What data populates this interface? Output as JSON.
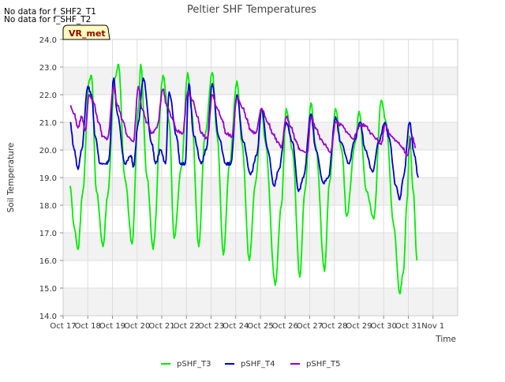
{
  "chart_data": {
    "type": "line",
    "title": "Peltier SHF Temperatures",
    "xlabel": "Time",
    "ylabel": "Soil Temperature",
    "notes": [
      "No data for f_SHF2_T1",
      "No data for f_SHF_T2"
    ],
    "badge": "VR_met",
    "xlim": [
      0,
      16
    ],
    "ylim": [
      14.0,
      24.0
    ],
    "x_ticks": [
      {
        "x": 0,
        "label": "Oct 17"
      },
      {
        "x": 1,
        "label": "Oct 18"
      },
      {
        "x": 2,
        "label": "Oct 19"
      },
      {
        "x": 3,
        "label": "Oct 20"
      },
      {
        "x": 4,
        "label": "Oct 21"
      },
      {
        "x": 5,
        "label": "Oct 22"
      },
      {
        "x": 6,
        "label": "Oct 23"
      },
      {
        "x": 7,
        "label": "Oct 24"
      },
      {
        "x": 8,
        "label": "Oct 25"
      },
      {
        "x": 9,
        "label": "Oct 26"
      },
      {
        "x": 10,
        "label": "Oct 27"
      },
      {
        "x": 11,
        "label": "Oct 28"
      },
      {
        "x": 12,
        "label": "Oct 29"
      },
      {
        "x": 13,
        "label": "Oct 30"
      },
      {
        "x": 14,
        "label": "Oct 31"
      },
      {
        "x": 15,
        "label": "Nov 1"
      }
    ],
    "y_ticks": [
      "14.0",
      "15.0",
      "16.0",
      "17.0",
      "18.0",
      "19.0",
      "20.0",
      "21.0",
      "22.0",
      "23.0",
      "24.0"
    ],
    "grid": true,
    "legend_position": "bottom",
    "series": [
      {
        "name": "pSHF_T3",
        "color": "#00ee00",
        "x": [
          0.28,
          0.45,
          0.6,
          0.8,
          1.05,
          1.15,
          1.35,
          1.62,
          1.8,
          2.1,
          2.25,
          2.5,
          2.8,
          3.05,
          3.15,
          3.4,
          3.65,
          4.05,
          4.3,
          4.5,
          4.8,
          5.05,
          5.2,
          5.5,
          5.75,
          6.05,
          6.25,
          6.5,
          6.75,
          7.05,
          7.25,
          7.55,
          7.8,
          8.05,
          8.2,
          8.6,
          8.85,
          9.05,
          9.3,
          9.6,
          9.8,
          10.05,
          10.25,
          10.6,
          10.8,
          11.05,
          11.3,
          11.5,
          11.85,
          12.0,
          12.3,
          12.6,
          12.9,
          13.1,
          13.4,
          13.65,
          13.8,
          13.95,
          14.05,
          14.2,
          14.35
        ],
        "y": [
          18.7,
          17.2,
          16.4,
          18.5,
          22.5,
          22.7,
          18.5,
          16.5,
          18.3,
          22.6,
          23.1,
          19.0,
          16.6,
          21.5,
          23.1,
          19.0,
          16.4,
          22.7,
          21.0,
          16.8,
          19.4,
          22.8,
          21.5,
          16.5,
          20.5,
          22.8,
          20.5,
          16.2,
          19.5,
          22.5,
          20.3,
          16.0,
          18.8,
          21.5,
          20.3,
          15.1,
          18.0,
          21.5,
          20.0,
          15.4,
          18.5,
          21.7,
          20.1,
          15.6,
          18.8,
          21.5,
          20.0,
          17.6,
          20.3,
          21.4,
          18.5,
          17.5,
          21.8,
          21.0,
          17.3,
          14.8,
          15.6,
          18.2,
          20.5,
          18.5,
          16.0
        ]
      },
      {
        "name": "pSHF_T4",
        "color": "#0000cc",
        "x": [
          0.28,
          0.45,
          0.6,
          0.75,
          1.0,
          1.15,
          1.3,
          1.5,
          1.75,
          1.85,
          2.05,
          2.2,
          2.5,
          2.75,
          2.85,
          3.05,
          3.25,
          3.6,
          3.75,
          3.95,
          4.15,
          4.3,
          4.6,
          4.75,
          4.95,
          5.1,
          5.3,
          5.6,
          5.8,
          6.05,
          6.3,
          6.6,
          6.8,
          7.05,
          7.3,
          7.6,
          7.85,
          8.05,
          8.3,
          8.55,
          8.75,
          9.05,
          9.3,
          9.55,
          9.75,
          10.05,
          10.25,
          10.55,
          10.75,
          11.05,
          11.25,
          11.6,
          11.8,
          12.05,
          12.25,
          12.55,
          12.8,
          13.05,
          13.2,
          13.5,
          13.65,
          13.8,
          14.05,
          14.25,
          14.4
        ],
        "y": [
          21.0,
          20.0,
          19.3,
          20.0,
          22.3,
          22.0,
          20.5,
          19.5,
          19.5,
          19.6,
          22.6,
          21.3,
          19.5,
          19.8,
          19.4,
          21.0,
          22.6,
          20.2,
          19.5,
          20.0,
          19.5,
          22.1,
          20.5,
          19.5,
          19.5,
          22.4,
          20.5,
          19.5,
          20.0,
          22.4,
          20.5,
          19.5,
          19.5,
          22.0,
          20.3,
          19.1,
          19.8,
          21.5,
          20.0,
          18.7,
          19.3,
          21.0,
          20.3,
          18.5,
          19.0,
          21.3,
          20.0,
          18.8,
          19.0,
          21.2,
          20.3,
          19.5,
          20.3,
          21.0,
          20.0,
          19.2,
          20.3,
          21.0,
          20.5,
          18.7,
          18.2,
          19.0,
          21.0,
          19.8,
          19.0
        ]
      },
      {
        "name": "pSHF_T5",
        "color": "#9900cc",
        "x": [
          0.28,
          0.45,
          0.6,
          0.75,
          0.9,
          1.05,
          1.2,
          1.45,
          1.6,
          1.8,
          2.05,
          2.2,
          2.45,
          2.6,
          2.85,
          3.05,
          3.2,
          3.4,
          3.6,
          3.8,
          4.05,
          4.2,
          4.45,
          4.6,
          4.85,
          5.05,
          5.25,
          5.45,
          5.6,
          5.85,
          6.05,
          6.25,
          6.45,
          6.6,
          6.85,
          7.05,
          7.3,
          7.45,
          7.6,
          7.8,
          8.05,
          8.3,
          8.5,
          8.7,
          8.85,
          9.05,
          9.25,
          9.45,
          9.6,
          9.9,
          10.05,
          10.25,
          10.45,
          10.6,
          10.85,
          11.05,
          11.3,
          11.55,
          11.75,
          12.05,
          12.25,
          12.5,
          12.7,
          12.9,
          13.05,
          13.3,
          13.55,
          13.75,
          13.95,
          14.15,
          14.3
        ],
        "y": [
          21.6,
          21.3,
          20.8,
          21.2,
          20.7,
          22.0,
          21.8,
          21.0,
          20.5,
          20.4,
          22.3,
          21.6,
          21.0,
          20.5,
          20.3,
          22.3,
          21.5,
          21.0,
          20.6,
          20.8,
          22.2,
          21.6,
          21.1,
          20.7,
          20.6,
          22.1,
          21.8,
          21.2,
          20.6,
          20.4,
          22.0,
          21.5,
          21.1,
          20.6,
          20.5,
          21.9,
          21.5,
          21.1,
          20.7,
          20.6,
          21.5,
          21.0,
          20.6,
          20.3,
          20.1,
          21.2,
          20.8,
          20.3,
          20.0,
          19.9,
          21.2,
          20.8,
          20.4,
          20.2,
          19.9,
          21.0,
          20.9,
          20.6,
          20.4,
          20.9,
          20.9,
          20.6,
          20.4,
          20.2,
          20.9,
          20.5,
          20.3,
          20.1,
          19.8,
          20.5,
          20.1
        ]
      }
    ]
  }
}
